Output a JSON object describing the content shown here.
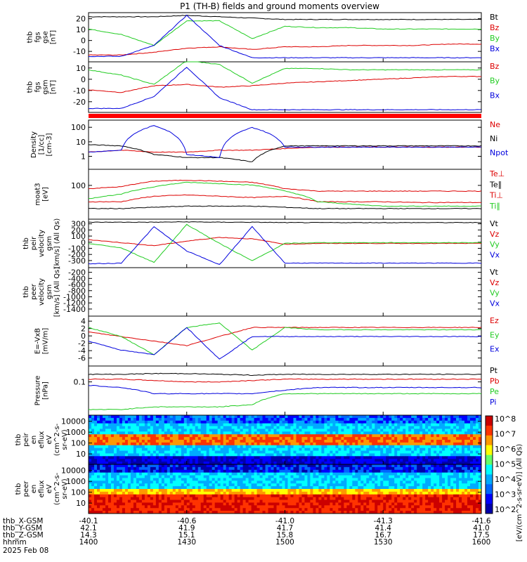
{
  "title": "P1 (TH-B) fields and ground moments overview",
  "colors": {
    "black": "#000000",
    "red": "#dd0000",
    "green": "#22cc22",
    "blue": "#0000dd"
  },
  "panels": [
    {
      "id": "fgs_gse",
      "ylabel_lines": [
        "thb",
        "fgs",
        "gse",
        "[nT]"
      ],
      "yticks": [
        "20",
        "10",
        "0",
        "-10"
      ],
      "ylim": [
        -14,
        22
      ],
      "legend": [
        {
          "text": "Bt",
          "color": "black"
        },
        {
          "text": "Bz",
          "color": "red"
        },
        {
          "text": "By",
          "color": "green"
        },
        {
          "text": "Bx",
          "color": "blue"
        }
      ]
    },
    {
      "id": "fgs_gsm",
      "ylabel_lines": [
        "thb",
        "fgs",
        "gsm",
        "[nT]"
      ],
      "yticks": [
        "10",
        "0",
        "-10",
        "-20"
      ],
      "ylim": [
        -24,
        14
      ],
      "legend": [
        {
          "text": "Bz",
          "color": "red"
        },
        {
          "text": "By",
          "color": "green"
        },
        {
          "text": "Bx",
          "color": "blue"
        }
      ]
    },
    {
      "id": "density",
      "ylabel_lines": [
        "Density",
        "[1/cc]",
        "[cm-3]"
      ],
      "yticks": [
        "100",
        "10",
        "1"
      ],
      "ylim": [
        1,
        100
      ],
      "log": true,
      "legend": [
        {
          "text": "Ne",
          "color": "red"
        },
        {
          "text": "Ni",
          "color": "black"
        },
        {
          "text": "Npot",
          "color": "blue"
        }
      ]
    },
    {
      "id": "temp",
      "ylabel_lines": [
        "moat3",
        "[eV]"
      ],
      "yticks": [
        "100"
      ],
      "ylim": [
        3,
        300
      ],
      "log": true,
      "legend": [
        {
          "text": "Te⊥",
          "color": "red"
        },
        {
          "text": "Te∥",
          "color": "black"
        },
        {
          "text": "Ti⊥",
          "color": "red"
        },
        {
          "text": "Ti∥",
          "color": "green"
        }
      ]
    },
    {
      "id": "peir_vel",
      "ylabel_lines": [
        "thb",
        "peir",
        "velocity",
        "gsm",
        "[km/s] (All Qs)"
      ],
      "yticks": [
        "300",
        "200",
        "100",
        "0",
        "-100",
        "-200",
        "-300"
      ],
      "ylim": [
        -320,
        320
      ],
      "legend": [
        {
          "text": "Vt",
          "color": "black"
        },
        {
          "text": "Vz",
          "color": "red"
        },
        {
          "text": "Vy",
          "color": "green"
        },
        {
          "text": "Vx",
          "color": "blue"
        }
      ]
    },
    {
      "id": "peer_vel",
      "ylabel_lines": [
        "thb",
        "peer",
        "velocity",
        "gsm",
        "[km/s] (All Qs)"
      ],
      "yticks": [
        "-200",
        "-400",
        "-600",
        "-800",
        "-1000",
        "-1200",
        "-1400"
      ],
      "ylim": [
        -1500,
        -100
      ],
      "legend": [
        {
          "text": "Vt",
          "color": "black"
        },
        {
          "text": "Vz",
          "color": "red"
        },
        {
          "text": "Vy",
          "color": "green"
        },
        {
          "text": "Vx",
          "color": "blue"
        }
      ]
    },
    {
      "id": "efield",
      "ylabel_lines": [
        "E=-VxB",
        "[mV/m]"
      ],
      "yticks": [
        "4",
        "2",
        "0",
        "-2",
        "-4",
        "-6"
      ],
      "ylim": [
        -6.5,
        4.5
      ],
      "legend": [
        {
          "text": "Ez",
          "color": "red"
        },
        {
          "text": "Ey",
          "color": "green"
        },
        {
          "text": "Ex",
          "color": "blue"
        }
      ]
    },
    {
      "id": "pressure",
      "ylabel_lines": [
        "Pressure",
        "[nPa]"
      ],
      "yticks": [
        "0.1"
      ],
      "ylim": [
        0.005,
        0.3
      ],
      "log": true,
      "legend": [
        {
          "text": "Pt",
          "color": "black"
        },
        {
          "text": "Pb",
          "color": "red"
        },
        {
          "text": "Pe",
          "color": "green"
        },
        {
          "text": "Pi",
          "color": "blue"
        }
      ]
    },
    {
      "id": "peir_spec",
      "ylabel_lines": [
        "thb",
        "peir",
        "en",
        "eflux",
        "eV",
        "(cm^2-s-",
        "sr-eV)"
      ],
      "yticks": [
        "10000",
        "1000",
        "100",
        "10"
      ],
      "ylim": [
        5,
        30000
      ],
      "log": true,
      "legend": []
    },
    {
      "id": "peer_spec",
      "ylabel_lines": [
        "thb",
        "peer",
        "en",
        "eflux",
        "eV",
        "(cm^2-s-",
        "sr-eV)"
      ],
      "yticks": [
        "10000",
        "1000",
        "100",
        "10"
      ],
      "ylim": [
        5,
        30000
      ],
      "log": true,
      "legend": []
    }
  ],
  "colorbar": {
    "labels": [
      "10^8",
      "10^7",
      "10^6",
      "10^5",
      "10^4",
      "10^3",
      "10^2"
    ],
    "label": "[eV/(cm^2-s-sr-eV)] (All Qs)"
  },
  "footer": {
    "rows": [
      {
        "label": "thb_X-GSM",
        "values": [
          "-40.1",
          "-40.6",
          "-41.0",
          "-41.3",
          "-41.6"
        ]
      },
      {
        "label": "thb_Y-GSM",
        "values": [
          "42.1",
          "41.9",
          "41.7",
          "41.4",
          "41.0"
        ]
      },
      {
        "label": "thb_Z-GSM",
        "values": [
          "14.3",
          "15.1",
          "15.8",
          "16.7",
          "17.5"
        ]
      },
      {
        "label": "hhmm",
        "values": [
          "1400",
          "1430",
          "1500",
          "1530",
          "1600"
        ]
      }
    ],
    "date": "2025 Feb 08"
  },
  "chart_data": {
    "type": "line",
    "x_unit": "hhmm",
    "x": [
      "1400",
      "1410",
      "1420",
      "1430",
      "1440",
      "1450",
      "1500",
      "1510",
      "1520",
      "1530",
      "1540",
      "1550",
      "1600"
    ],
    "panels": {
      "fgs_gse": [
        {
          "name": "Bt",
          "values": [
            19,
            19,
            19,
            20,
            19,
            18,
            17,
            17,
            17,
            17,
            17,
            17,
            17
          ]
        },
        {
          "name": "Bz",
          "values": [
            -9,
            -9,
            -7,
            -4,
            -3,
            -5,
            -3,
            -3,
            -2,
            -2,
            -2,
            -1,
            -1
          ]
        },
        {
          "name": "By",
          "values": [
            10,
            6,
            -2,
            16,
            16,
            3,
            12,
            11,
            11,
            10,
            10,
            10,
            10
          ]
        },
        {
          "name": "Bx",
          "values": [
            -10,
            -10,
            -2,
            20,
            -2,
            -11,
            -11,
            -11,
            -11,
            -11,
            -11,
            -11,
            -11
          ]
        }
      ],
      "fgs_gsm": [
        {
          "name": "Bz",
          "values": [
            -7,
            -9,
            -4,
            -3,
            -5,
            -4,
            -2,
            -1,
            0,
            1,
            2,
            3,
            3
          ]
        },
        {
          "name": "By",
          "values": [
            8,
            4,
            -3,
            15,
            12,
            -2,
            9,
            9,
            8,
            8,
            8,
            8,
            8
          ]
        },
        {
          "name": "Bx",
          "values": [
            -21,
            -21,
            -12,
            10,
            -13,
            -22,
            -22,
            -22,
            -22,
            -22,
            -22,
            -22,
            -22
          ]
        }
      ],
      "density": [
        {
          "name": "Ne",
          "values": [
            5,
            6,
            5,
            5,
            6,
            6,
            7,
            8,
            8,
            8,
            8,
            8,
            8
          ]
        },
        {
          "name": "Ni",
          "values": [
            10,
            9,
            4,
            3,
            3,
            2,
            9,
            9,
            9,
            9,
            9,
            9,
            9
          ]
        },
        {
          "name": "Npot",
          "values": [
            5,
            6,
            60,
            4,
            3,
            50,
            8,
            8,
            8,
            8,
            8,
            8,
            8
          ]
        }
      ],
      "temp": [
        {
          "name": "Te⊥",
          "values": [
            15,
            15,
            25,
            28,
            25,
            22,
            25,
            15,
            15,
            15,
            14,
            14,
            14
          ]
        },
        {
          "name": "Te∥",
          "values": [
            8,
            8,
            9,
            10,
            10,
            10,
            9,
            8,
            8,
            8,
            8,
            8,
            8
          ]
        },
        {
          "name": "Ti⊥",
          "values": [
            50,
            60,
            100,
            110,
            100,
            90,
            50,
            40,
            40,
            40,
            40,
            40,
            40
          ]
        },
        {
          "name": "Ti∥",
          "values": [
            20,
            30,
            60,
            90,
            80,
            70,
            40,
            15,
            12,
            10,
            10,
            10,
            10
          ]
        }
      ],
      "peir_vel": [
        {
          "name": "Vt",
          "values": [
            280,
            280,
            280,
            285,
            280,
            280,
            275,
            275,
            275,
            275,
            275,
            275,
            275
          ]
        },
        {
          "name": "Vz",
          "values": [
            50,
            10,
            -30,
            30,
            80,
            60,
            -10,
            0,
            0,
            0,
            0,
            0,
            0
          ]
        },
        {
          "name": "Vy",
          "values": [
            0,
            -60,
            -250,
            250,
            0,
            -230,
            0,
            10,
            10,
            10,
            10,
            10,
            10
          ]
        },
        {
          "name": "Vx",
          "values": [
            -270,
            -260,
            220,
            -100,
            -280,
            220,
            -260,
            -260,
            -260,
            -260,
            -260,
            -260,
            -260
          ]
        }
      ],
      "peer_vel": [],
      "efield": [
        {
          "name": "Ez",
          "values": [
            1,
            0,
            -1,
            -2,
            0,
            2,
            2,
            2,
            2,
            2,
            2,
            2,
            2
          ]
        },
        {
          "name": "Ey",
          "values": [
            2,
            0,
            -4,
            2,
            3,
            -3,
            2,
            1.5,
            1.5,
            1.5,
            1.5,
            1.5,
            1.5
          ]
        },
        {
          "name": "Ex",
          "values": [
            -1,
            -3,
            -4,
            2,
            -5,
            0,
            0,
            0,
            0,
            0,
            0,
            0,
            0
          ]
        }
      ],
      "pressure": [
        {
          "name": "Pt",
          "values": [
            0.15,
            0.15,
            0.16,
            0.16,
            0.15,
            0.14,
            0.15,
            0.15,
            0.15,
            0.15,
            0.15,
            0.15,
            0.15
          ]
        },
        {
          "name": "Pb",
          "values": [
            0.1,
            0.1,
            0.09,
            0.08,
            0.08,
            0.09,
            0.1,
            0.1,
            0.1,
            0.1,
            0.1,
            0.1,
            0.1
          ]
        },
        {
          "name": "Pe",
          "values": [
            0.008,
            0.008,
            0.01,
            0.01,
            0.01,
            0.012,
            0.03,
            0.03,
            0.03,
            0.03,
            0.03,
            0.03,
            0.03
          ]
        },
        {
          "name": "Pi",
          "values": [
            0.06,
            0.05,
            0.03,
            0.03,
            0.03,
            0.03,
            0.04,
            0.05,
            0.05,
            0.05,
            0.05,
            0.05,
            0.05
          ]
        }
      ]
    }
  }
}
